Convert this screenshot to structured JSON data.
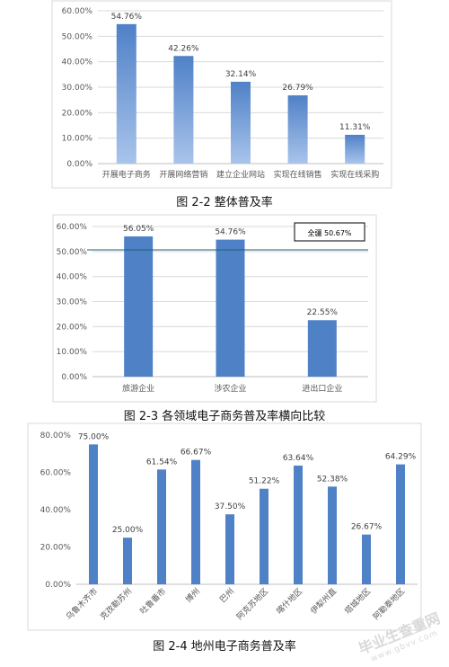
{
  "captions": [
    "图 2-2 整体普及率",
    "图 2-3 各领域电子商务普及率横向比较",
    "图 2-4 地州电子商务普及率"
  ],
  "watermark": {
    "main": "毕业生查重网",
    "sub": "www.gbvv.com"
  },
  "colors": {
    "bar": "#4f81c7",
    "bar_light": "#a9c4eb",
    "grid": "#d9d9d9",
    "axis_text": "#595959",
    "refline": "#1f5f7a"
  },
  "chart_data": [
    {
      "type": "bar",
      "gradient": true,
      "categories": [
        "开展电子商务",
        "开展网络营销",
        "建立企业网站",
        "实现在线销售",
        "实现在线采购"
      ],
      "values": [
        54.76,
        42.26,
        32.14,
        26.79,
        11.31
      ],
      "value_labels": [
        "54.76%",
        "42.26%",
        "32.14%",
        "26.79%",
        "11.31%"
      ],
      "ylim": [
        0,
        60
      ],
      "yticks": [
        "0.00%",
        "10.00%",
        "20.00%",
        "30.00%",
        "40.00%",
        "50.00%",
        "60.00%"
      ],
      "grid": true
    },
    {
      "type": "bar",
      "categories": [
        "旅游企业",
        "涉农企业",
        "进出口企业"
      ],
      "values": [
        56.05,
        54.76,
        22.55
      ],
      "value_labels": [
        "56.05%",
        "54.76%",
        "22.55%"
      ],
      "ylim": [
        0,
        60
      ],
      "yticks": [
        "0.00%",
        "10.00%",
        "20.00%",
        "30.00%",
        "40.00%",
        "50.00%",
        "60.00%"
      ],
      "grid": true,
      "reference_line": {
        "value": 50.67,
        "label": "全疆 50.67%"
      }
    },
    {
      "type": "bar",
      "categories": [
        "乌鲁木齐市",
        "克孜勒苏州",
        "吐鲁番市",
        "博州",
        "巴州",
        "阿克苏地区",
        "喀什地区",
        "伊犁州直",
        "塔城地区",
        "阿勒泰地区"
      ],
      "values": [
        75.0,
        25.0,
        61.54,
        66.67,
        37.5,
        51.22,
        63.64,
        52.38,
        26.67,
        64.29
      ],
      "value_labels": [
        "75.00%",
        "25.00%",
        "61.54%",
        "66.67%",
        "37.50%",
        "51.22%",
        "63.64%",
        "52.38%",
        "26.67%",
        "64.29%"
      ],
      "ylim": [
        0,
        80
      ],
      "yticks": [
        "0.00%",
        "20.00%",
        "40.00%",
        "60.00%",
        "80.00%"
      ],
      "grid": false,
      "rotate_labels": true
    }
  ]
}
